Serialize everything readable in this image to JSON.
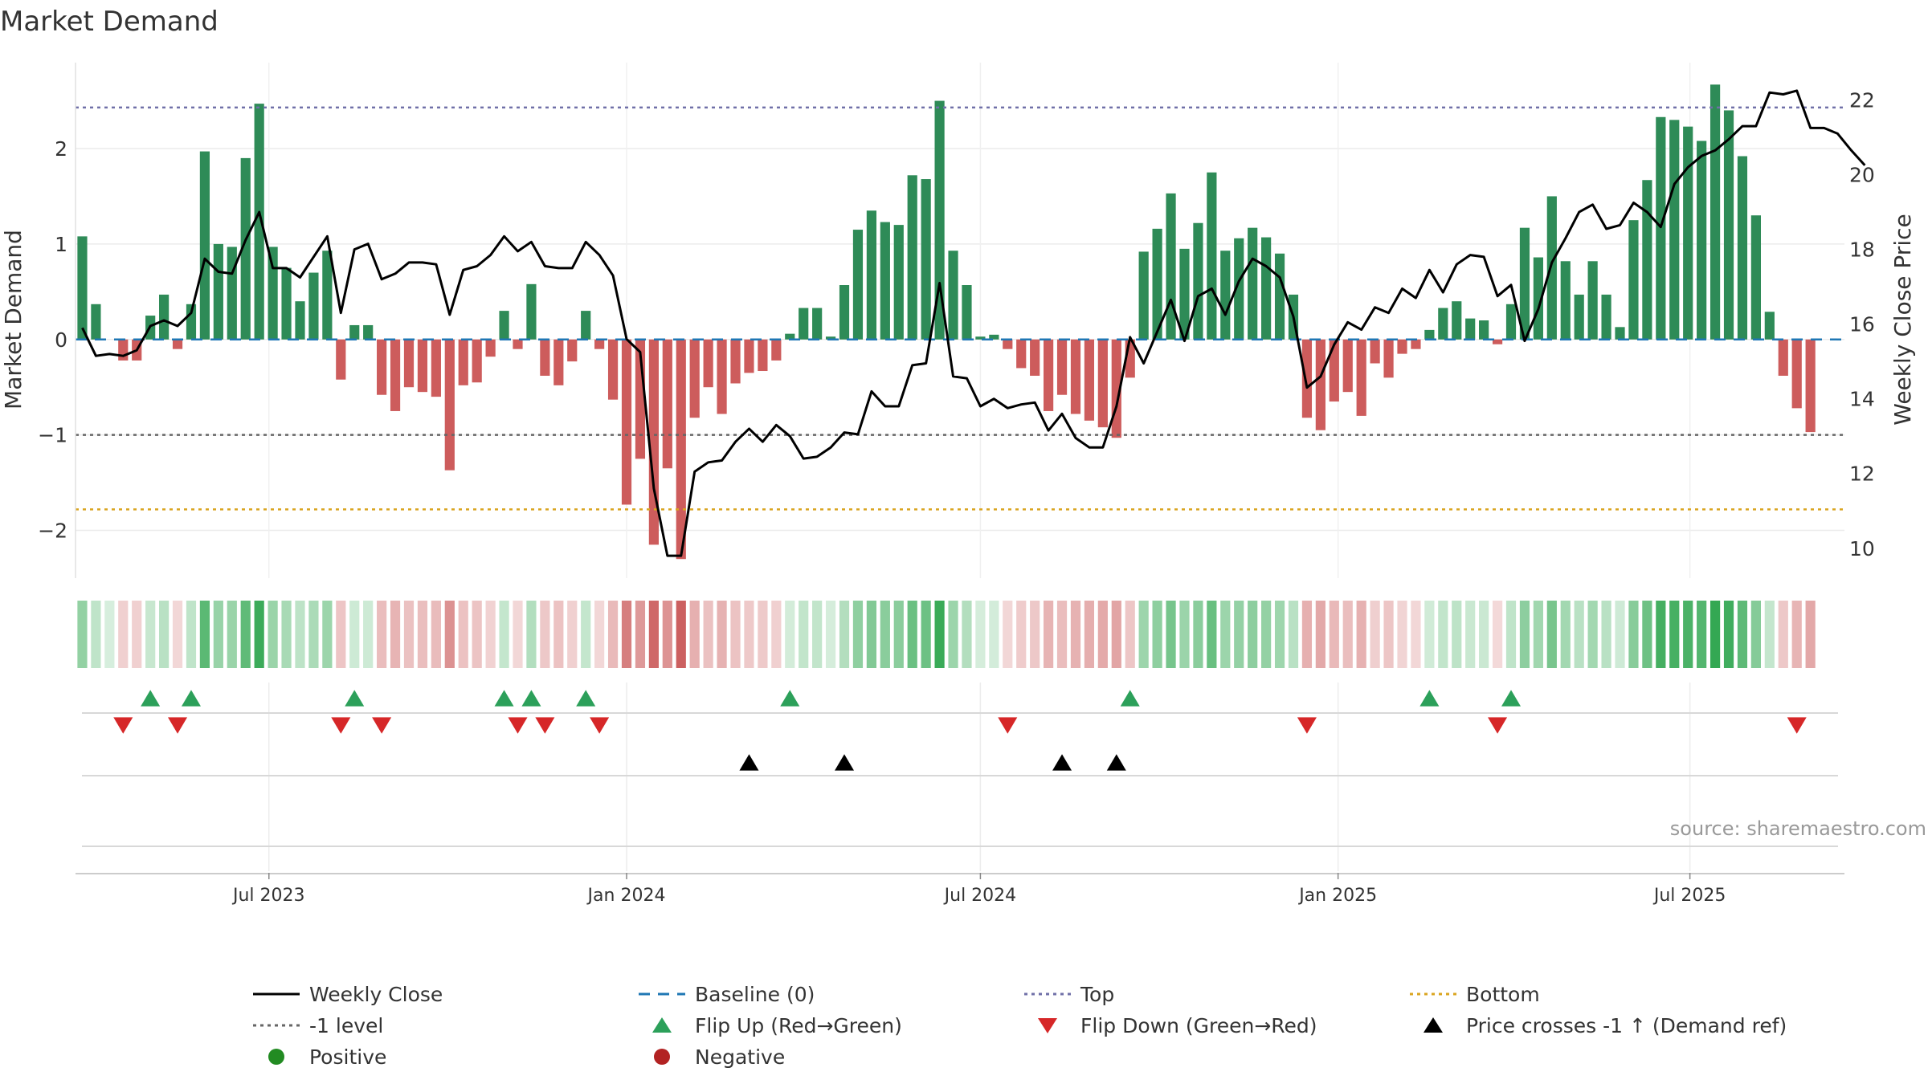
{
  "chart_data": {
    "type": "bar",
    "title": "Market Demand",
    "ylabel_left": "Market Demand",
    "ylabel_right": "Weekly Close Price",
    "ylim_left": [
      -2.5,
      2.9
    ],
    "ylim_right": [
      9.2,
      23.0
    ],
    "yticks_left": [
      "2",
      "1",
      "0",
      "−1",
      "−2"
    ],
    "yticks_right": [
      "22",
      "20",
      "18",
      "16",
      "14",
      "12",
      "10"
    ],
    "reference_lines": {
      "top": 2.43,
      "minus_one": -1.0,
      "bottom": -1.78,
      "baseline": 0
    },
    "x_tick_labels": [
      "Jul 2023",
      "Jan 2024",
      "Jul 2024",
      "Jan 2025",
      "Jul 2025"
    ],
    "weeks_start": "2023-03-27",
    "weeks_count": 130,
    "demand": [
      1.08,
      0.37,
      0,
      -0.22,
      -0.22,
      0.25,
      0.47,
      -0.1,
      0.37,
      1.97,
      1.0,
      0.97,
      1.9,
      2.47,
      0.97,
      0.75,
      0.4,
      0.7,
      0.93,
      -0.42,
      0.15,
      0.15,
      -0.58,
      -0.75,
      -0.5,
      -0.55,
      -0.6,
      -1.37,
      -0.48,
      -0.45,
      -0.18,
      0.3,
      -0.1,
      0.58,
      -0.38,
      -0.48,
      -0.23,
      0.3,
      -0.1,
      -0.63,
      -1.73,
      -1.25,
      -2.15,
      -1.35,
      -2.3,
      -0.82,
      -0.5,
      -0.78,
      -0.46,
      -0.35,
      -0.33,
      -0.22,
      0.06,
      0.33,
      0.33,
      0.03,
      0.57,
      1.15,
      1.35,
      1.23,
      1.2,
      1.72,
      1.68,
      2.5,
      0.93,
      0.57,
      0.03,
      0.05,
      -0.1,
      -0.3,
      -0.38,
      -0.75,
      -0.58,
      -0.78,
      -0.85,
      -0.92,
      -1.03,
      -0.4,
      0.92,
      1.16,
      1.53,
      0.95,
      1.22,
      1.75,
      0.93,
      1.06,
      1.17,
      1.07,
      0.9,
      0.47,
      -0.82,
      -0.95,
      -0.65,
      -0.55,
      -0.8,
      -0.25,
      -0.4,
      -0.15,
      -0.1,
      0.1,
      0.33,
      0.4,
      0.22,
      0.2,
      -0.05,
      0.37,
      1.17,
      0.86,
      1.5,
      0.82,
      0.47,
      0.82,
      0.47,
      0.13,
      1.25,
      1.67,
      2.33,
      2.3,
      2.23,
      2.08,
      2.67,
      2.4,
      1.92,
      1.3,
      0.29,
      -0.38,
      -0.72,
      -0.97
    ],
    "weekly_close": [
      15.9,
      15.15,
      15.2,
      15.15,
      15.3,
      15.95,
      16.1,
      15.95,
      16.3,
      17.75,
      17.4,
      17.35,
      18.25,
      19.0,
      17.5,
      17.5,
      17.25,
      17.8,
      18.35,
      16.3,
      18.0,
      18.15,
      17.2,
      17.35,
      17.65,
      17.65,
      17.6,
      16.25,
      17.45,
      17.55,
      17.85,
      18.35,
      17.95,
      18.2,
      17.55,
      17.5,
      17.5,
      18.2,
      17.85,
      17.3,
      15.6,
      15.25,
      11.6,
      9.8,
      9.8,
      12.05,
      12.3,
      12.35,
      12.85,
      13.2,
      12.85,
      13.3,
      13.0,
      12.4,
      12.45,
      12.7,
      13.1,
      13.05,
      14.2,
      13.8,
      13.8,
      14.9,
      14.95,
      17.1,
      14.6,
      14.55,
      13.8,
      14.0,
      13.75,
      13.85,
      13.9,
      13.15,
      13.6,
      12.95,
      12.7,
      12.7,
      13.8,
      15.65,
      14.95,
      15.8,
      16.65,
      15.55,
      16.75,
      16.95,
      16.25,
      17.15,
      17.75,
      17.55,
      17.25,
      16.2,
      14.3,
      14.6,
      15.45,
      16.05,
      15.85,
      16.45,
      16.3,
      16.95,
      16.7,
      17.45,
      16.85,
      17.6,
      17.85,
      17.8,
      16.75,
      17.05,
      15.55,
      16.4,
      17.65,
      18.3,
      19.0,
      19.2,
      18.55,
      18.65,
      19.25,
      19.0,
      18.6,
      19.75,
      20.2,
      20.5,
      20.65,
      20.95,
      21.3,
      21.3,
      22.2,
      22.15,
      22.25,
      21.25,
      21.25,
      21.1,
      20.65,
      20.25
    ],
    "flip_up_weeks": [
      5,
      8,
      20,
      31,
      33,
      37,
      52,
      77,
      99,
      105
    ],
    "flip_down_weeks": [
      3,
      7,
      19,
      22,
      32,
      34,
      38,
      68,
      90,
      104,
      126
    ],
    "price_cross_weeks": [
      49,
      56,
      72,
      76
    ],
    "source": "source: sharemaestro.com",
    "legend": [
      {
        "label": "Weekly Close",
        "style": "line"
      },
      {
        "label": "Baseline (0)",
        "style": "dash"
      },
      {
        "label": "Top",
        "style": "dot-purple"
      },
      {
        "label": "Bottom",
        "style": "dot-orange"
      },
      {
        "label": "-1 level",
        "style": "dot-gray"
      },
      {
        "label": "Flip Up (Red→Green)",
        "style": "triangle-up-green"
      },
      {
        "label": "Flip Down (Green→Red)",
        "style": "triangle-down-red"
      },
      {
        "label": "Price crosses -1 ↑ (Demand ref)",
        "style": "triangle-up-black"
      },
      {
        "label": "Positive",
        "style": "circle-green"
      },
      {
        "label": "Negative",
        "style": "circle-red"
      }
    ],
    "colors": {
      "positive": "#2e8b57",
      "negative": "#cd5c5c",
      "price": "#000000",
      "baseline": "#1f77b4",
      "top": "#7070a8",
      "bottom": "#daa520",
      "minus_one": "#666666",
      "flip_up": "#2ca05a",
      "flip_down": "#d62728",
      "legend_positive": "#228b22",
      "legend_negative": "#b22222"
    }
  }
}
